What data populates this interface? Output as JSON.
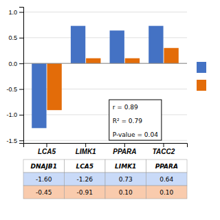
{
  "chart_data": {
    "type": "bar",
    "categories": [
      "LCA5",
      "LIMK1",
      "PPARA",
      "TACC2"
    ],
    "series": [
      {
        "color": "#4472C4",
        "values": [
          -1.26,
          0.73,
          0.64,
          0.73
        ]
      },
      {
        "color": "#E36C09",
        "values": [
          -0.91,
          0.1,
          0.1,
          0.3
        ]
      }
    ],
    "ylim": [
      -1.55,
      1.1
    ],
    "yticks": [
      -1.5,
      {
        "value": -1.0,
        "label": "-1.0"
      },
      -0.5,
      {
        "value": 0.0,
        "label": "0.0"
      },
      0.5,
      {
        "value": 1.0,
        "label": "1.0"
      }
    ],
    "grid": true,
    "legend": "right",
    "annotations": [
      "r = 0.89",
      "R² = 0.79",
      "P-value = 0.04"
    ],
    "table": {
      "headers": [
        "DNAJB1",
        "LCA5",
        "LIMK1",
        "PPARA"
      ],
      "rows": [
        [
          "-1.60",
          "-1.26",
          "0.73",
          "0.64"
        ],
        [
          "-0.45",
          "-0.91",
          "0.10",
          "0.10"
        ]
      ],
      "colors": [
        "#C9DAF8",
        "#F9CBAD"
      ]
    }
  }
}
